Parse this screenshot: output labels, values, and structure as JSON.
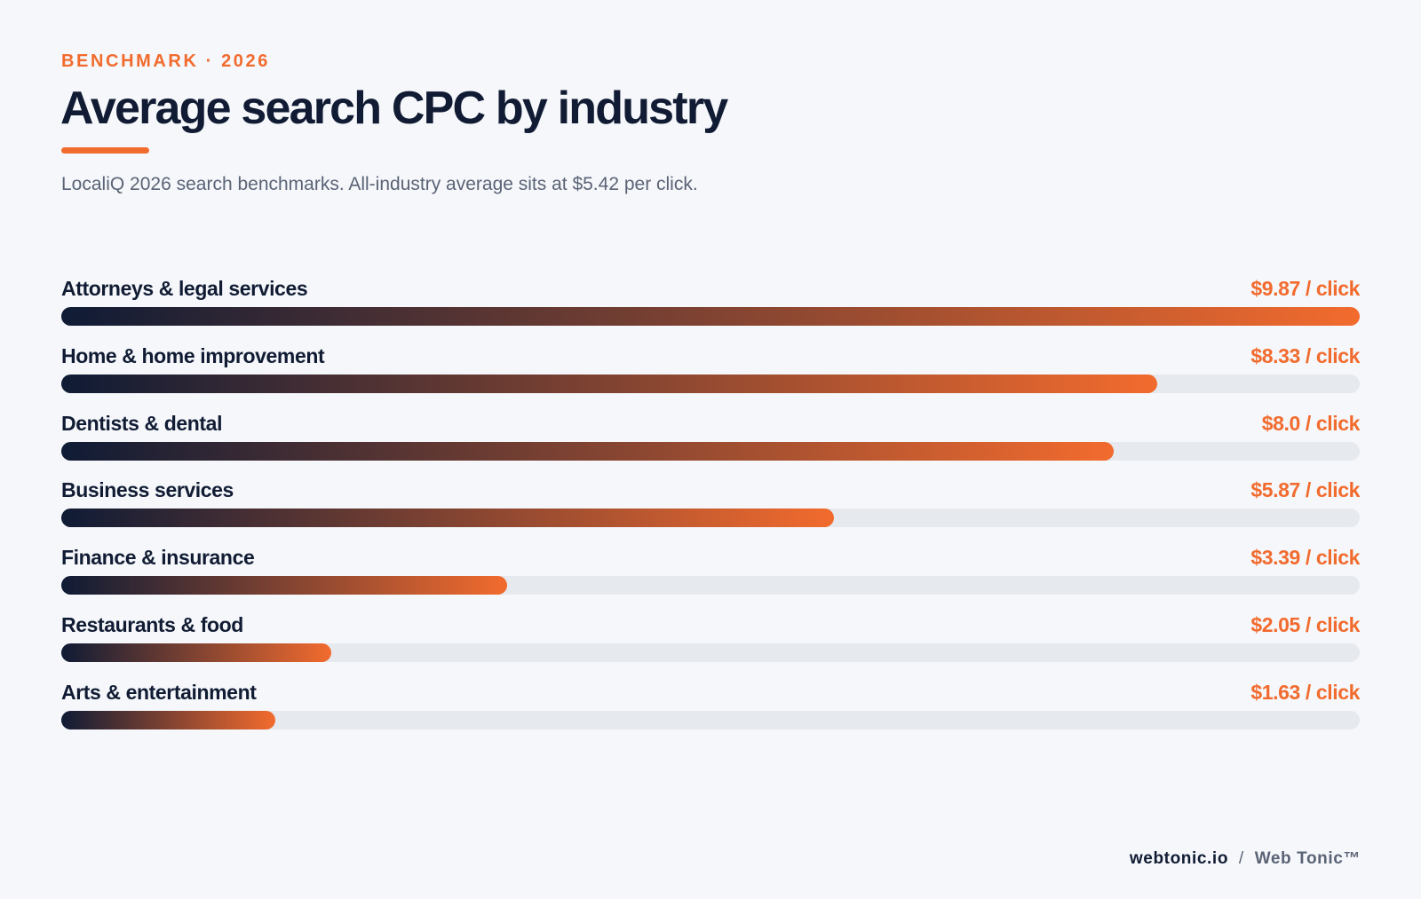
{
  "header": {
    "eyebrow": "BENCHMARK · 2026",
    "title": "Average search CPC by industry",
    "subtitle": "LocaliQ 2026 search benchmarks. All-industry average sits at $5.42 per click."
  },
  "chart_data": {
    "type": "bar",
    "orientation": "horizontal",
    "categories": [
      "Attorneys & legal services",
      "Home & home improvement",
      "Dentists & dental",
      "Business services",
      "Finance & insurance",
      "Restaurants & food",
      "Arts & entertainment"
    ],
    "values": [
      9.87,
      8.33,
      8.0,
      5.87,
      3.39,
      2.05,
      1.63
    ],
    "value_labels": [
      "$9.87 / click",
      "$8.33 / click",
      "$8.0 / click",
      "$5.87 / click",
      "$3.39 / click",
      "$2.05 / click",
      "$1.63 / click"
    ],
    "xlim": [
      0,
      9.87
    ],
    "grid": false,
    "colors": {
      "bar_start": "#0f1b35",
      "bar_end": "#f26b2e",
      "track": "#e6e9ee",
      "value_text": "#f26b2e",
      "label_text": "#111c34"
    }
  },
  "footer": {
    "domain": "webtonic.io",
    "separator": "/",
    "brand": "Web Tonic™"
  }
}
